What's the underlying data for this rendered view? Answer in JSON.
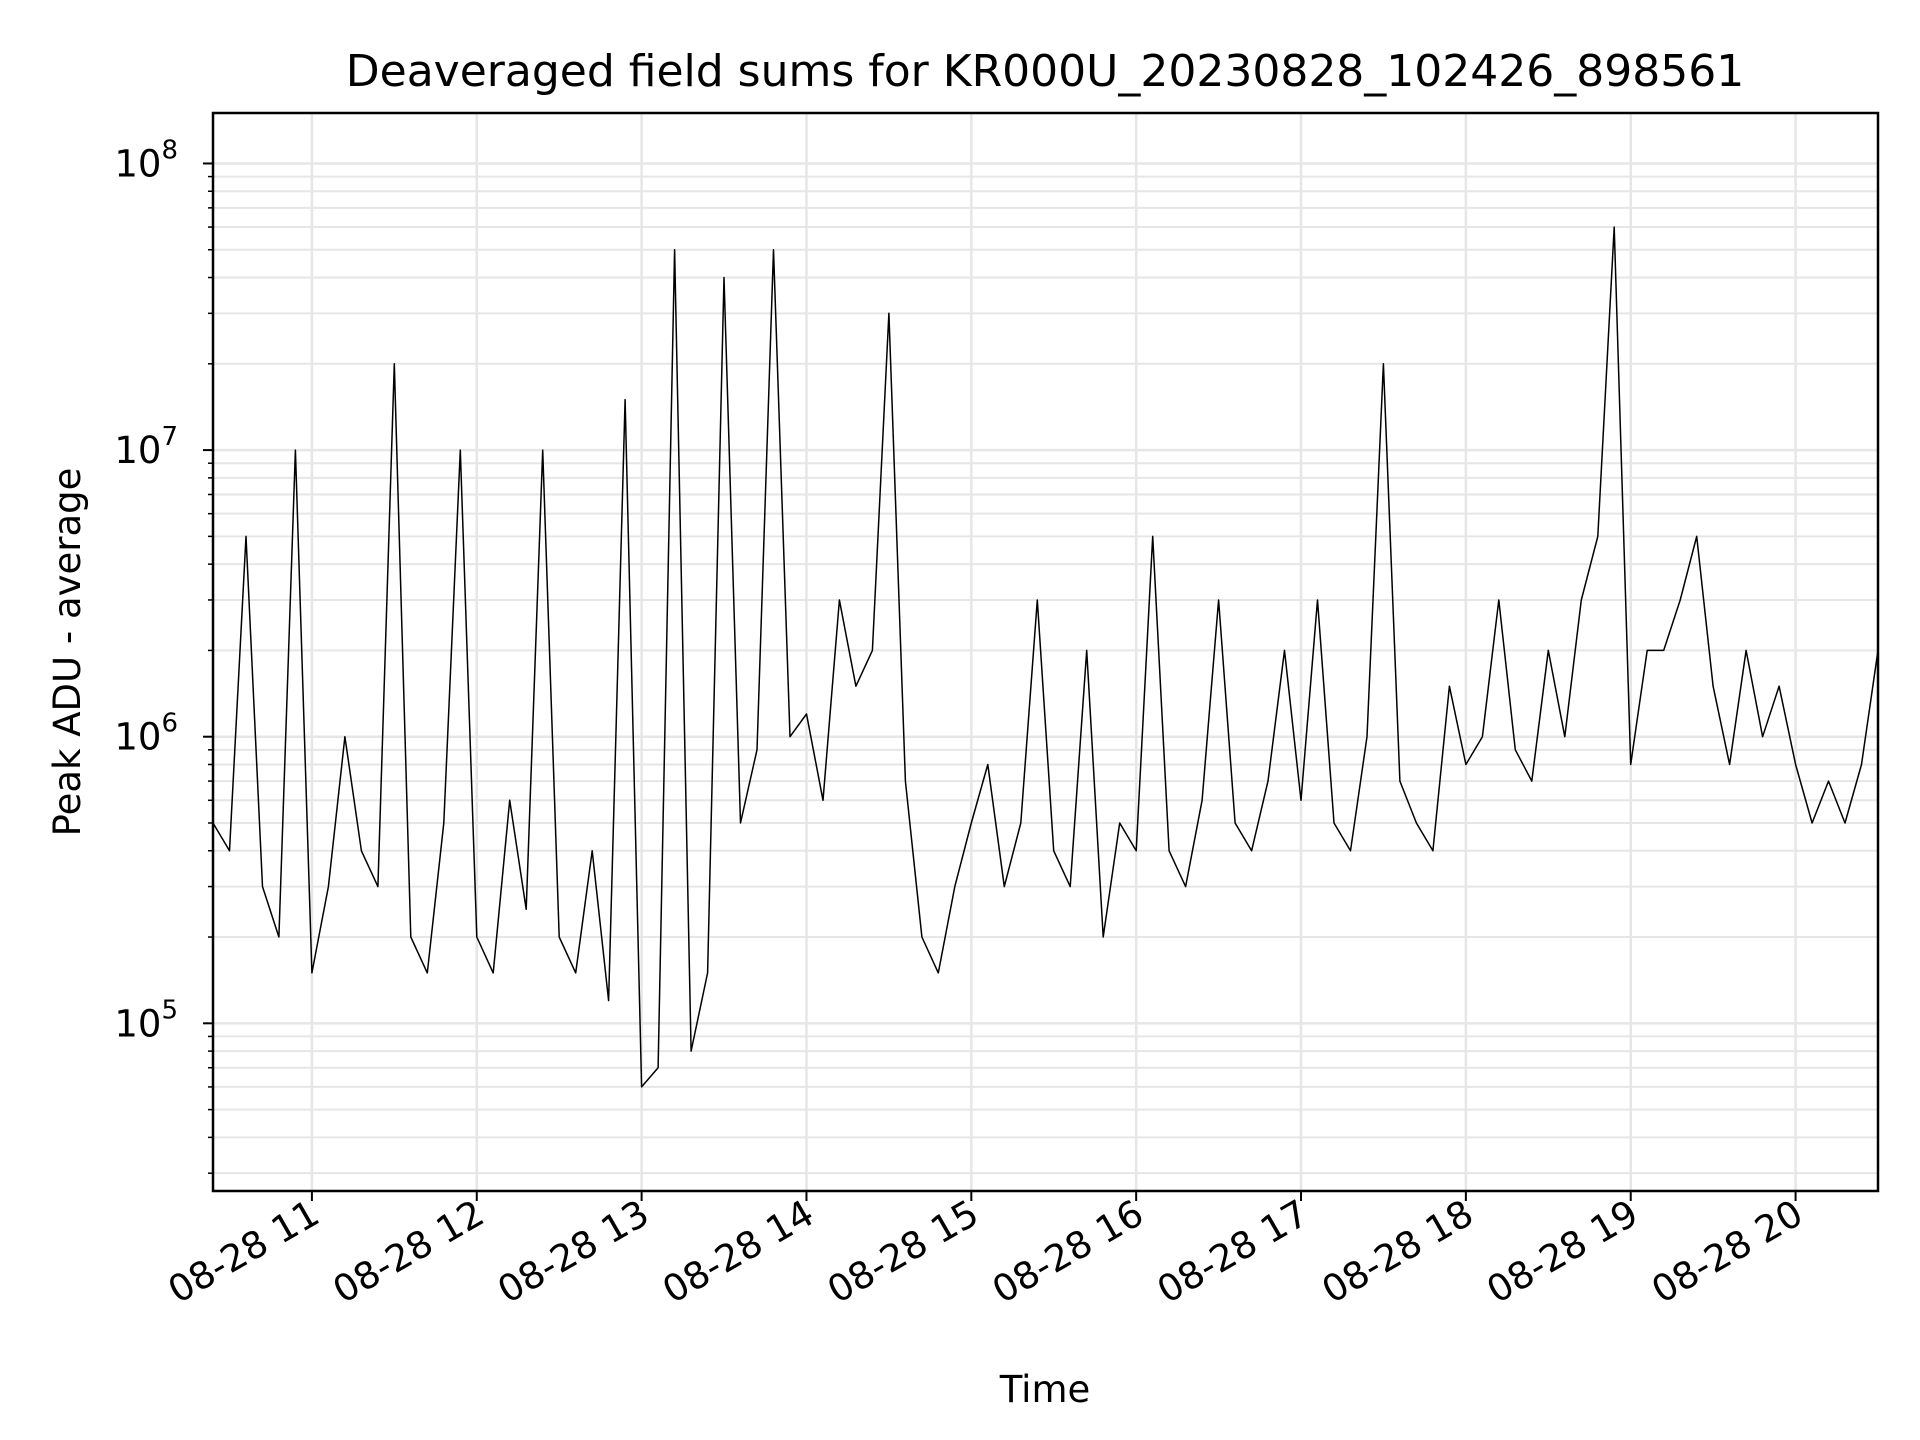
{
  "chart_data": {
    "type": "line",
    "title": "Deaveraged field sums for KR000U_20230828_102426_898561",
    "xlabel": "Time",
    "ylabel": "Peak ADU - average",
    "yscale": "log",
    "ylim": [
      26000,
      150000000
    ],
    "xlim": [
      "2023-08-28 10:24",
      "2023-08-28 20:30"
    ],
    "grid": true,
    "line_color": "#000000",
    "grid_color": "#e6e6e6",
    "x_ticks": [
      {
        "value": "2023-08-28 11:00",
        "label": "08-28 11"
      },
      {
        "value": "2023-08-28 12:00",
        "label": "08-28 12"
      },
      {
        "value": "2023-08-28 13:00",
        "label": "08-28 13"
      },
      {
        "value": "2023-08-28 14:00",
        "label": "08-28 14"
      },
      {
        "value": "2023-08-28 15:00",
        "label": "08-28 15"
      },
      {
        "value": "2023-08-28 16:00",
        "label": "08-28 16"
      },
      {
        "value": "2023-08-28 17:00",
        "label": "08-28 17"
      },
      {
        "value": "2023-08-28 18:00",
        "label": "08-28 18"
      },
      {
        "value": "2023-08-28 19:00",
        "label": "08-28 19"
      },
      {
        "value": "2023-08-28 20:00",
        "label": "08-28 20"
      }
    ],
    "y_ticks": [
      {
        "value": 100000,
        "base": "10",
        "exp": "5"
      },
      {
        "value": 1000000,
        "base": "10",
        "exp": "6"
      },
      {
        "value": 10000000,
        "base": "10",
        "exp": "7"
      },
      {
        "value": 100000000,
        "base": "10",
        "exp": "8"
      }
    ],
    "series": [
      {
        "x": [
          "2023-08-28 10:24",
          "2023-08-28 10:30",
          "2023-08-28 10:36",
          "2023-08-28 10:42",
          "2023-08-28 10:48",
          "2023-08-28 10:54",
          "2023-08-28 11:00",
          "2023-08-28 11:06",
          "2023-08-28 11:12",
          "2023-08-28 11:18",
          "2023-08-28 11:24",
          "2023-08-28 11:30",
          "2023-08-28 11:36",
          "2023-08-28 11:42",
          "2023-08-28 11:48",
          "2023-08-28 11:54",
          "2023-08-28 12:00",
          "2023-08-28 12:06",
          "2023-08-28 12:12",
          "2023-08-28 12:18",
          "2023-08-28 12:24",
          "2023-08-28 12:30",
          "2023-08-28 12:36",
          "2023-08-28 12:42",
          "2023-08-28 12:48",
          "2023-08-28 12:54",
          "2023-08-28 13:00",
          "2023-08-28 13:06",
          "2023-08-28 13:12",
          "2023-08-28 13:18",
          "2023-08-28 13:24",
          "2023-08-28 13:30",
          "2023-08-28 13:36",
          "2023-08-28 13:42",
          "2023-08-28 13:48",
          "2023-08-28 13:54",
          "2023-08-28 14:00",
          "2023-08-28 14:06",
          "2023-08-28 14:12",
          "2023-08-28 14:18",
          "2023-08-28 14:24",
          "2023-08-28 14:30",
          "2023-08-28 14:36",
          "2023-08-28 14:42",
          "2023-08-28 14:48",
          "2023-08-28 14:54",
          "2023-08-28 15:00",
          "2023-08-28 15:06",
          "2023-08-28 15:12",
          "2023-08-28 15:18",
          "2023-08-28 15:24",
          "2023-08-28 15:30",
          "2023-08-28 15:36",
          "2023-08-28 15:42",
          "2023-08-28 15:48",
          "2023-08-28 15:54",
          "2023-08-28 16:00",
          "2023-08-28 16:06",
          "2023-08-28 16:12",
          "2023-08-28 16:18",
          "2023-08-28 16:24",
          "2023-08-28 16:30",
          "2023-08-28 16:36",
          "2023-08-28 16:42",
          "2023-08-28 16:48",
          "2023-08-28 16:54",
          "2023-08-28 17:00",
          "2023-08-28 17:06",
          "2023-08-28 17:12",
          "2023-08-28 17:18",
          "2023-08-28 17:24",
          "2023-08-28 17:30",
          "2023-08-28 17:36",
          "2023-08-28 17:42",
          "2023-08-28 17:48",
          "2023-08-28 17:54",
          "2023-08-28 18:00",
          "2023-08-28 18:06",
          "2023-08-28 18:12",
          "2023-08-28 18:18",
          "2023-08-28 18:24",
          "2023-08-28 18:30",
          "2023-08-28 18:36",
          "2023-08-28 18:42",
          "2023-08-28 18:48",
          "2023-08-28 18:54",
          "2023-08-28 19:00",
          "2023-08-28 19:06",
          "2023-08-28 19:12",
          "2023-08-28 19:18",
          "2023-08-28 19:24",
          "2023-08-28 19:30",
          "2023-08-28 19:36",
          "2023-08-28 19:42",
          "2023-08-28 19:48",
          "2023-08-28 19:54",
          "2023-08-28 20:00",
          "2023-08-28 20:06",
          "2023-08-28 20:12",
          "2023-08-28 20:18",
          "2023-08-28 20:24",
          "2023-08-28 20:30"
        ],
        "y": [
          500000,
          400000,
          5000000,
          300000,
          200000,
          10000000,
          150000,
          300000,
          1000000,
          400000,
          300000,
          20000000,
          200000,
          150000,
          500000,
          10000000,
          200000,
          150000,
          600000,
          250000,
          10000000,
          200000,
          150000,
          400000,
          120000,
          15000000,
          60000,
          70000,
          50000000,
          80000,
          150000,
          40000000,
          500000,
          900000,
          50000000,
          1000000,
          1200000,
          600000,
          3000000,
          1500000,
          2000000,
          30000000,
          700000,
          200000,
          150000,
          300000,
          500000,
          800000,
          300000,
          500000,
          3000000,
          400000,
          300000,
          2000000,
          200000,
          500000,
          400000,
          5000000,
          400000,
          300000,
          600000,
          3000000,
          500000,
          400000,
          700000,
          2000000,
          600000,
          3000000,
          500000,
          400000,
          1000000,
          20000000,
          700000,
          500000,
          400000,
          1500000,
          800000,
          1000000,
          3000000,
          900000,
          700000,
          2000000,
          1000000,
          3000000,
          5000000,
          60000000,
          800000,
          2000000,
          2000000,
          3000000,
          5000000,
          1500000,
          800000,
          2000000,
          1000000,
          1500000,
          800000,
          500000,
          700000,
          500000,
          800000,
          2000000
        ]
      }
    ]
  }
}
